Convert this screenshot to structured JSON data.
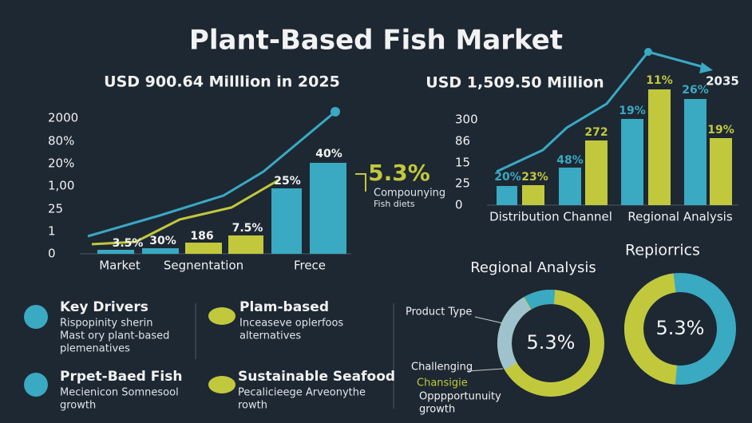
{
  "title": "Plant-Based Fish Market",
  "left_panel": {
    "headline": "USD 900.64 Milllion in 2025",
    "axis_labels": [
      "2000",
      "80%",
      "20%",
      "1,00",
      "25",
      "1",
      "0"
    ],
    "bar_labels": [
      "3.5%",
      "30%",
      "186",
      "7.5%",
      "25%",
      "40%"
    ],
    "categories": [
      "Market",
      "Segnentation",
      "Frece"
    ],
    "callout": {
      "value": "5.3%",
      "lines": [
        "Compounying",
        "Fish diets"
      ]
    }
  },
  "right_panel": {
    "headline": "USD 1,509.50 Million",
    "year": "2035",
    "axis_labels": [
      "300",
      "86",
      "15",
      "25",
      "0"
    ],
    "bar_labels": [
      "20%",
      "23%",
      "48%",
      "272",
      "19%",
      "11%",
      "26%",
      "19%"
    ],
    "categories": [
      "Distribution Channel",
      "Regional Analysis"
    ]
  },
  "features": [
    {
      "title": "Key Drivers",
      "lines": [
        "Rispopinity sherin",
        "Mast ory plant-based",
        "plemenatives"
      ]
    },
    {
      "title": "Plam-based",
      "lines": [
        "Inceaseve oplerfoos",
        "alternatives"
      ]
    },
    {
      "title": "Prpet-Baed Fish",
      "lines": [
        "Mecienicon Somnesool",
        "growth"
      ]
    },
    {
      "title": "Sustainable Seafood",
      "lines": [
        "Pecalicieege Arveonythe",
        "rowth"
      ]
    }
  ],
  "donut_left": {
    "title": "Regional Analysis",
    "value": "5.3%",
    "labels": [
      "Product Type",
      "Challenging"
    ],
    "highlight": "Chansigie",
    "lines": [
      "Opppportunuity",
      "growth"
    ]
  },
  "donut_right": {
    "title": "Repiorrics",
    "value": "5.3%"
  }
}
